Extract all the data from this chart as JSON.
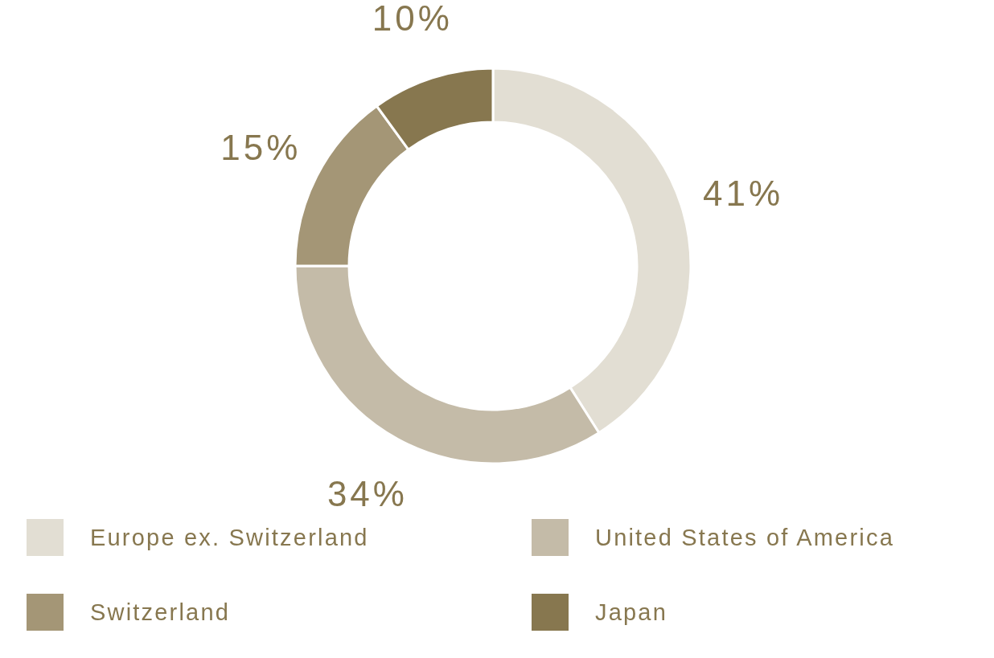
{
  "chart_data": {
    "type": "donut",
    "categories": [
      "Europe ex. Switzerland",
      "United States of America",
      "Switzerland",
      "Japan"
    ],
    "values": [
      41,
      34,
      15,
      10
    ],
    "colors": [
      "#e2ded3",
      "#c4bba8",
      "#a49676",
      "#87774f"
    ],
    "value_labels": [
      "41%",
      "34%",
      "15%",
      "10%"
    ],
    "legend": "bottom"
  }
}
